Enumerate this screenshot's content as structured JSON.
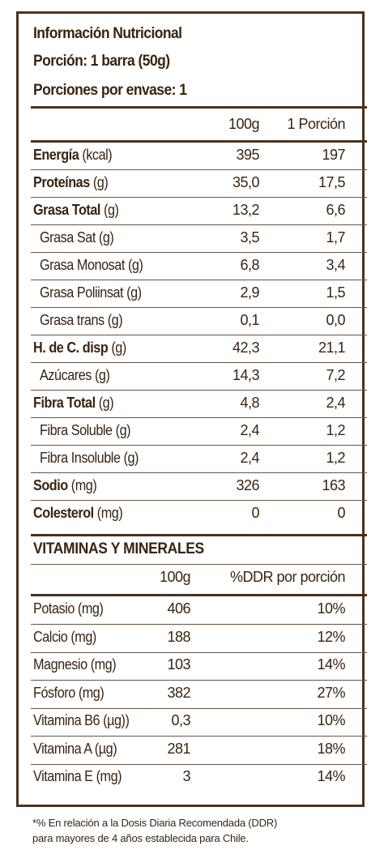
{
  "header": {
    "title": "Información Nutricional",
    "portion": "Porción: 1 barra (50g)",
    "servings": "Porciones por envase: 1"
  },
  "columns": {
    "per100": "100g",
    "perPortion": "1 Porción"
  },
  "nutrients": [
    {
      "bold": "Energía",
      "unit": " (kcal)",
      "v100": "395",
      "vpor": "197",
      "indent": false
    },
    {
      "bold": "Proteínas",
      "unit": " (g)",
      "v100": "35,0",
      "vpor": "17,5",
      "indent": false
    },
    {
      "bold": "Grasa Total",
      "unit": " (g)",
      "v100": "13,2",
      "vpor": "6,6",
      "indent": false
    },
    {
      "bold": "",
      "unit": "Grasa Sat (g)",
      "v100": "3,5",
      "vpor": "1,7",
      "indent": true
    },
    {
      "bold": "",
      "unit": "Grasa Monosat (g)",
      "v100": "6,8",
      "vpor": "3,4",
      "indent": true
    },
    {
      "bold": "",
      "unit": "Grasa Poliinsat (g)",
      "v100": "2,9",
      "vpor": "1,5",
      "indent": true
    },
    {
      "bold": "",
      "unit": "Grasa trans (g)",
      "v100": "0,1",
      "vpor": "0,0",
      "indent": true
    },
    {
      "bold": "H. de C. disp",
      "unit": " (g)",
      "v100": "42,3",
      "vpor": "21,1",
      "indent": false
    },
    {
      "bold": "",
      "unit": "Azúcares (g)",
      "v100": "14,3",
      "vpor": "7,2",
      "indent": true
    },
    {
      "bold": "Fibra Total",
      "unit": " (g)",
      "v100": "4,8",
      "vpor": "2,4",
      "indent": false
    },
    {
      "bold": "",
      "unit": "Fibra Soluble (g)",
      "v100": "2,4",
      "vpor": "1,2",
      "indent": true
    },
    {
      "bold": "",
      "unit": "Fibra Insoluble (g)",
      "v100": "2,4",
      "vpor": "1,2",
      "indent": true
    },
    {
      "bold": "Sodio",
      "unit": " (mg)",
      "v100": "326",
      "vpor": "163",
      "indent": false
    },
    {
      "bold": "Colesterol",
      "unit": " (mg)",
      "v100": "0",
      "vpor": "0",
      "indent": false
    }
  ],
  "vitamins": {
    "title": "VITAMINAS Y MINERALES",
    "col100": "100g",
    "colDdr": "%DDR por porción",
    "rows": [
      {
        "name": "Potasio (mg)",
        "v100": "406",
        "ddr": "10%"
      },
      {
        "name": "Calcio (mg)",
        "v100": "188",
        "ddr": "12%"
      },
      {
        "name": "Magnesio (mg)",
        "v100": "103",
        "ddr": "14%"
      },
      {
        "name": "Fósforo (mg)",
        "v100": "382",
        "ddr": "27%"
      },
      {
        "name": "Vitamina B6 (µg))",
        "v100": "0,3",
        "ddr": "10%"
      },
      {
        "name": "Vitamina A (µg)",
        "v100": "281",
        "ddr": "18%"
      },
      {
        "name": "Vitamina E (mg)",
        "v100": "3",
        "ddr": "14%"
      }
    ]
  },
  "footnote": {
    "line1": "*% En relación a la Dosis Diaria Recomendada (DDR)",
    "line2": "para mayores de 4 años establecida para Chile."
  },
  "colors": {
    "text": "#3a2410",
    "border": "#4a3220"
  }
}
